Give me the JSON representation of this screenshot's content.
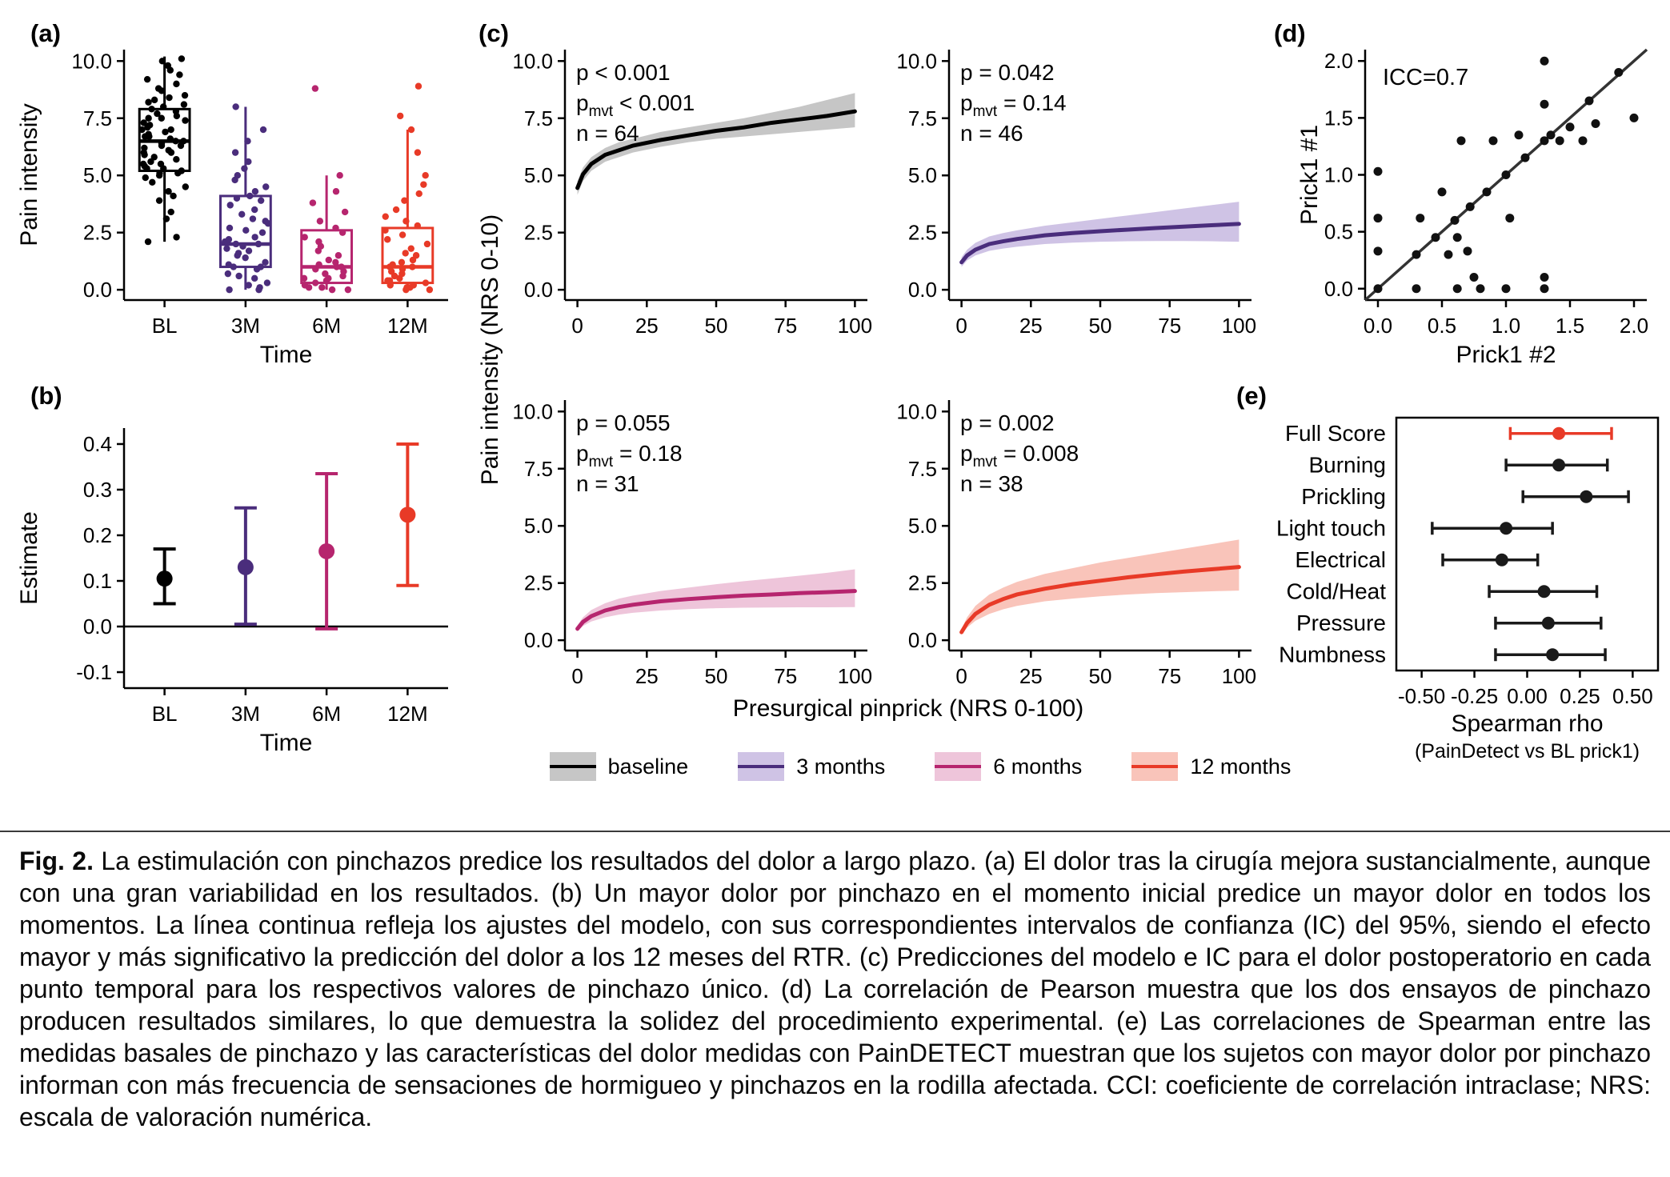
{
  "caption": {
    "label": "Fig. 2.",
    "text": "La estimulación con pinchazos predice los resultados del dolor a largo plazo. (a) El dolor tras la cirugía mejora sustancialmente, aunque con una gran variabilidad en los resultados. (b) Un mayor dolor por pinchazo en el momento inicial predice un mayor dolor en todos los momentos. La línea continua refleja los ajustes del modelo, con sus correspondientes intervalos de confianza (IC) del 95%, siendo el efecto mayor y más significativo la predicción del dolor a los 12 meses del RTR. (c) Predicciones del modelo e IC para el dolor postoperatorio en cada punto temporal para los respectivos valores de pinchazo único. (d) La correlación de Pearson muestra que los dos ensayos de pinchazo producen resultados similares, lo que demuestra la solidez del procedimiento experimental. (e) Las correlaciones de Spearman entre las medidas basales de pinchazo y las características del dolor medidas con PainDETECT muestran que los sujetos con mayor dolor por pinchazo informan con más frecuencia de sensaciones de hormigueo y pinchazos en la rodilla afectada. CCI: coeficiente de correlación intraclase; NRS: escala de valoración numérica."
  },
  "colors": {
    "baseline": "#000000",
    "months3": "#4a2d7c",
    "months6": "#b6256e",
    "months12": "#e83a27"
  },
  "legend": {
    "items": [
      {
        "key": "baseline",
        "label": "baseline",
        "line": "#000000",
        "fill": "#c6c6c6"
      },
      {
        "key": "3-months",
        "label": "3 months",
        "line": "#4a2d7c",
        "fill": "#cfc3e5"
      },
      {
        "key": "6-months",
        "label": "6 months",
        "line": "#b6256e",
        "fill": "#eec5da"
      },
      {
        "key": "12-months",
        "label": "12 months",
        "line": "#e83a27",
        "fill": "#f9c4ba"
      }
    ]
  },
  "chart_data": [
    {
      "id": "a",
      "panel_label": "(a)",
      "type": "bar",
      "subtype": "boxplot-with-jitter",
      "xlabel": "Time",
      "ylabel": "Pain intensity",
      "categories": [
        "BL",
        "3M",
        "6M",
        "12M"
      ],
      "ylim": [
        -0.45,
        10.5
      ],
      "yticks": {
        "values": [
          0,
          2.5,
          5,
          7.5,
          10
        ],
        "labels": [
          "0.0",
          "2.5",
          "5.0",
          "7.5",
          "10.0"
        ]
      },
      "groups": [
        {
          "label": "BL",
          "color": "#000000",
          "median": 6.5,
          "q1": 5.2,
          "q3": 7.9,
          "whisker_low": 2.1,
          "whisker_high": 10.2,
          "points": [
            2.1,
            2.3,
            3.1,
            3.4,
            3.9,
            4.1,
            4.3,
            4.5,
            4.7,
            4.9,
            5.0,
            5.1,
            5.1,
            5.2,
            5.3,
            5.3,
            5.4,
            5.5,
            5.5,
            5.6,
            5.7,
            5.8,
            5.9,
            6.0,
            6.0,
            6.1,
            6.2,
            6.3,
            6.3,
            6.4,
            6.5,
            6.5,
            6.6,
            6.7,
            6.7,
            6.8,
            6.9,
            7.0,
            7.0,
            7.1,
            7.2,
            7.3,
            7.4,
            7.5,
            7.5,
            7.6,
            7.7,
            7.8,
            7.9,
            8.0,
            8.1,
            8.2,
            8.3,
            8.4,
            8.5,
            8.7,
            8.8,
            9.0,
            9.2,
            9.4,
            9.6,
            9.8,
            10.0,
            10.1
          ]
        },
        {
          "label": "3M",
          "color": "#4a2d7c",
          "median": 2.0,
          "q1": 1.0,
          "q3": 4.1,
          "whisker_low": 0.0,
          "whisker_high": 8.0,
          "points": [
            0.0,
            0.0,
            0.1,
            0.2,
            0.3,
            0.5,
            0.6,
            0.7,
            0.9,
            1.0,
            1.0,
            1.1,
            1.2,
            1.4,
            1.5,
            1.6,
            1.7,
            1.8,
            1.9,
            2.0,
            2.0,
            2.1,
            2.2,
            2.3,
            2.5,
            2.6,
            2.7,
            2.9,
            3.0,
            3.1,
            3.3,
            3.5,
            3.7,
            3.9,
            4.0,
            4.1,
            4.3,
            4.5,
            4.8,
            5.0,
            5.3,
            5.6,
            6.0,
            6.5,
            7.0,
            8.0
          ]
        },
        {
          "label": "6M",
          "color": "#b6256e",
          "median": 1.0,
          "q1": 0.3,
          "q3": 2.6,
          "whisker_low": 0.0,
          "whisker_high": 5.0,
          "points": [
            0.0,
            0.0,
            0.1,
            0.1,
            0.2,
            0.3,
            0.4,
            0.5,
            0.5,
            0.6,
            0.7,
            0.8,
            0.9,
            1.0,
            1.0,
            1.1,
            1.2,
            1.3,
            1.5,
            1.7,
            1.9,
            2.1,
            2.3,
            2.5,
            2.7,
            3.0,
            3.4,
            3.8,
            4.3,
            5.0,
            8.8
          ]
        },
        {
          "label": "12M",
          "color": "#e83a27",
          "median": 1.0,
          "q1": 0.3,
          "q3": 2.7,
          "whisker_low": 0.0,
          "whisker_high": 7.0,
          "points": [
            0.0,
            0.0,
            0.1,
            0.1,
            0.2,
            0.2,
            0.3,
            0.4,
            0.4,
            0.5,
            0.6,
            0.7,
            0.8,
            0.9,
            1.0,
            1.0,
            1.1,
            1.2,
            1.3,
            1.5,
            1.6,
            1.8,
            2.0,
            2.2,
            2.4,
            2.6,
            2.8,
            3.0,
            3.2,
            3.5,
            3.9,
            4.2,
            4.6,
            5.0,
            6.0,
            7.0,
            7.6,
            8.9
          ]
        }
      ]
    },
    {
      "id": "b",
      "panel_label": "(b)",
      "type": "scatter",
      "subtype": "point-range",
      "xlabel": "Time",
      "ylabel": "Estimate",
      "categories": [
        "BL",
        "3M",
        "6M",
        "12M"
      ],
      "ylim": [
        -0.135,
        0.435
      ],
      "yticks": {
        "values": [
          -0.1,
          0.0,
          0.1,
          0.2,
          0.3,
          0.4
        ],
        "labels": [
          "-0.1",
          "0.0",
          "0.1",
          "0.2",
          "0.3",
          "0.4"
        ]
      },
      "hline": 0.0,
      "points": [
        {
          "label": "BL",
          "color": "#000000",
          "estimate": 0.105,
          "lower": 0.05,
          "upper": 0.17
        },
        {
          "label": "3M",
          "color": "#4a2d7c",
          "estimate": 0.13,
          "lower": 0.005,
          "upper": 0.26
        },
        {
          "label": "6M",
          "color": "#b6256e",
          "estimate": 0.165,
          "lower": -0.005,
          "upper": 0.335
        },
        {
          "label": "12M",
          "color": "#e83a27",
          "estimate": 0.245,
          "lower": 0.09,
          "upper": 0.4
        }
      ]
    },
    {
      "id": "c",
      "panel_label": "(c)",
      "type": "line",
      "subtype": "model-fit-with-ci",
      "xlabel": "Presurgical pinprick (NRS 0-100)",
      "ylabel": "Pain intensity (NRS 0-10)",
      "xlim": [
        -4.5,
        104.5
      ],
      "ylim": [
        -0.45,
        10.5
      ],
      "xticks": {
        "values": [
          0,
          25,
          50,
          75,
          100
        ],
        "labels": [
          "0",
          "25",
          "50",
          "75",
          "100"
        ]
      },
      "yticks": {
        "values": [
          0,
          2.5,
          5,
          7.5,
          10
        ],
        "labels": [
          "0.0",
          "2.5",
          "5.0",
          "7.5",
          "10.0"
        ]
      },
      "subplots": [
        {
          "name": "baseline",
          "color": "#000000",
          "fill": "#c6c6c6",
          "p_label": "p < 0.001",
          "pmvt_sub": "mvt",
          "pmvt_label": "< 0.001",
          "n_label": "n = 64",
          "x": [
            0,
            2,
            5,
            10,
            15,
            20,
            30,
            40,
            50,
            60,
            70,
            80,
            90,
            100
          ],
          "y": [
            4.45,
            5.05,
            5.5,
            5.9,
            6.1,
            6.3,
            6.55,
            6.75,
            6.95,
            7.1,
            7.3,
            7.45,
            7.6,
            7.8
          ],
          "lower": [
            4.15,
            4.75,
            5.2,
            5.6,
            5.8,
            6.0,
            6.25,
            6.45,
            6.6,
            6.7,
            6.8,
            6.9,
            7.0,
            7.1
          ],
          "upper": [
            4.75,
            5.35,
            5.8,
            6.2,
            6.45,
            6.6,
            6.9,
            7.1,
            7.3,
            7.5,
            7.75,
            8.0,
            8.3,
            8.6
          ]
        },
        {
          "name": "3 months",
          "color": "#4a2d7c",
          "fill": "#cfc3e5",
          "p_label": "p = 0.042",
          "pmvt_sub": "mvt",
          "pmvt_label": "= 0.14",
          "n_label": "n = 46",
          "x": [
            0,
            2,
            5,
            10,
            15,
            20,
            30,
            40,
            50,
            60,
            70,
            80,
            90,
            100
          ],
          "y": [
            1.2,
            1.5,
            1.75,
            2.0,
            2.12,
            2.22,
            2.38,
            2.48,
            2.56,
            2.63,
            2.7,
            2.76,
            2.82,
            2.88
          ],
          "lower": [
            1.0,
            1.28,
            1.5,
            1.7,
            1.8,
            1.88,
            2.0,
            2.06,
            2.1,
            2.12,
            2.13,
            2.13,
            2.12,
            2.1
          ],
          "upper": [
            1.42,
            1.75,
            2.05,
            2.33,
            2.48,
            2.6,
            2.8,
            2.95,
            3.1,
            3.25,
            3.4,
            3.55,
            3.7,
            3.85
          ]
        },
        {
          "name": "6 months",
          "color": "#b6256e",
          "fill": "#eec5da",
          "p_label": "p = 0.055",
          "pmvt_sub": "mvt",
          "pmvt_label": "= 0.18",
          "n_label": "n = 31",
          "x": [
            0,
            2,
            5,
            10,
            15,
            20,
            30,
            40,
            50,
            60,
            70,
            80,
            90,
            100
          ],
          "y": [
            0.5,
            0.8,
            1.05,
            1.3,
            1.45,
            1.55,
            1.7,
            1.8,
            1.88,
            1.95,
            2.0,
            2.06,
            2.1,
            2.15
          ],
          "lower": [
            0.38,
            0.62,
            0.82,
            1.0,
            1.12,
            1.2,
            1.3,
            1.36,
            1.4,
            1.42,
            1.43,
            1.44,
            1.44,
            1.45
          ],
          "upper": [
            0.65,
            1.0,
            1.32,
            1.62,
            1.82,
            1.95,
            2.15,
            2.3,
            2.45,
            2.58,
            2.7,
            2.82,
            2.95,
            3.1
          ]
        },
        {
          "name": "12 months",
          "color": "#e83a27",
          "fill": "#f9c4ba",
          "p_label": "p = 0.002",
          "pmvt_sub": "mvt",
          "pmvt_label": "= 0.008",
          "n_label": "n = 38",
          "x": [
            0,
            2,
            5,
            10,
            15,
            20,
            30,
            40,
            50,
            60,
            70,
            80,
            90,
            100
          ],
          "y": [
            0.35,
            0.75,
            1.15,
            1.55,
            1.8,
            2.0,
            2.25,
            2.45,
            2.6,
            2.75,
            2.88,
            3.0,
            3.1,
            3.2
          ],
          "lower": [
            0.25,
            0.55,
            0.85,
            1.15,
            1.35,
            1.5,
            1.7,
            1.82,
            1.92,
            2.0,
            2.06,
            2.1,
            2.14,
            2.17
          ],
          "upper": [
            0.5,
            1.0,
            1.5,
            2.0,
            2.3,
            2.55,
            2.9,
            3.15,
            3.4,
            3.6,
            3.8,
            4.0,
            4.2,
            4.4
          ]
        }
      ]
    },
    {
      "id": "d",
      "panel_label": "(d)",
      "type": "scatter",
      "annotation": "ICC=0.7",
      "xlabel": "Prick1 #2",
      "ylabel": "Prick1 #1",
      "xlim": [
        -0.1,
        2.1
      ],
      "ylim": [
        -0.1,
        2.1
      ],
      "xticks": {
        "values": [
          0,
          0.5,
          1.0,
          1.5,
          2.0
        ],
        "labels": [
          "0.0",
          "0.5",
          "1.0",
          "1.5",
          "2.0"
        ]
      },
      "yticks": {
        "values": [
          0,
          0.5,
          1.0,
          1.5,
          2.0
        ],
        "labels": [
          "0.0",
          "0.5",
          "1.0",
          "1.5",
          "2.0"
        ]
      },
      "line": [
        -0.1,
        2.1
      ],
      "points": [
        [
          0.0,
          0.0
        ],
        [
          0.0,
          0.33
        ],
        [
          0.0,
          0.62
        ],
        [
          0.0,
          1.03
        ],
        [
          0.3,
          0.0
        ],
        [
          0.3,
          0.3
        ],
        [
          0.33,
          0.62
        ],
        [
          0.45,
          0.45
        ],
        [
          0.5,
          0.85
        ],
        [
          0.55,
          0.3
        ],
        [
          0.6,
          0.6
        ],
        [
          0.62,
          0.0
        ],
        [
          0.62,
          0.45
        ],
        [
          0.65,
          1.3
        ],
        [
          0.7,
          0.33
        ],
        [
          0.72,
          0.72
        ],
        [
          0.75,
          0.1
        ],
        [
          0.8,
          0.0
        ],
        [
          0.85,
          0.85
        ],
        [
          0.9,
          1.3
        ],
        [
          1.0,
          0.0
        ],
        [
          1.0,
          1.0
        ],
        [
          1.03,
          0.62
        ],
        [
          1.1,
          1.35
        ],
        [
          1.15,
          1.15
        ],
        [
          1.3,
          0.0
        ],
        [
          1.3,
          0.1
        ],
        [
          1.3,
          1.3
        ],
        [
          1.3,
          1.62
        ],
        [
          1.3,
          2.0
        ],
        [
          1.35,
          1.35
        ],
        [
          1.42,
          1.3
        ],
        [
          1.5,
          1.42
        ],
        [
          1.6,
          1.3
        ],
        [
          1.65,
          1.65
        ],
        [
          1.7,
          1.45
        ],
        [
          1.88,
          1.9
        ],
        [
          2.0,
          1.5
        ]
      ]
    },
    {
      "id": "e",
      "panel_label": "(e)",
      "type": "scatter",
      "subtype": "forest",
      "xlabel": "Spearman rho",
      "xlabel2": "(PainDetect vs BL prick1)",
      "xlim": [
        -0.62,
        0.62
      ],
      "xticks": {
        "values": [
          -0.5,
          -0.25,
          0.0,
          0.25,
          0.5
        ],
        "labels": [
          "-0.50",
          "-0.25",
          "0.00",
          "0.25",
          "0.50"
        ]
      },
      "rows": [
        {
          "label": "Full Score",
          "color": "#e83a27",
          "estimate": 0.15,
          "lower": -0.08,
          "upper": 0.4
        },
        {
          "label": "Burning",
          "color": "#1a1a1a",
          "estimate": 0.15,
          "lower": -0.1,
          "upper": 0.38
        },
        {
          "label": "Prickling",
          "color": "#1a1a1a",
          "estimate": 0.28,
          "lower": -0.02,
          "upper": 0.48
        },
        {
          "label": "Light touch",
          "color": "#1a1a1a",
          "estimate": -0.1,
          "lower": -0.45,
          "upper": 0.12
        },
        {
          "label": "Electrical",
          "color": "#1a1a1a",
          "estimate": -0.12,
          "lower": -0.4,
          "upper": 0.05
        },
        {
          "label": "Cold/Heat",
          "color": "#1a1a1a",
          "estimate": 0.08,
          "lower": -0.18,
          "upper": 0.33
        },
        {
          "label": "Pressure",
          "color": "#1a1a1a",
          "estimate": 0.1,
          "lower": -0.15,
          "upper": 0.35
        },
        {
          "label": "Numbness",
          "color": "#1a1a1a",
          "estimate": 0.12,
          "lower": -0.15,
          "upper": 0.37
        }
      ]
    }
  ]
}
